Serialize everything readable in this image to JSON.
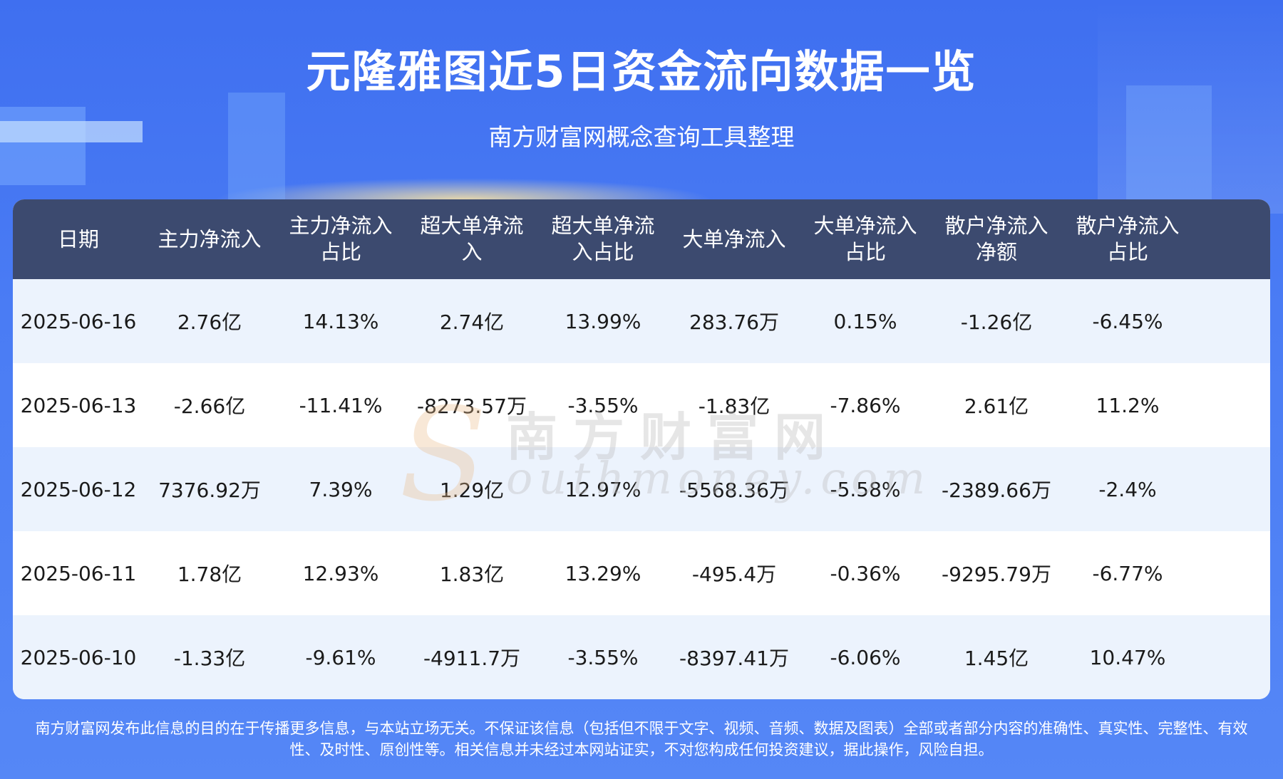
{
  "header": {
    "title": "元隆雅图近5日资金流向数据一览",
    "subtitle": "南方财富网概念查询工具整理"
  },
  "chart_data": {
    "type": "table",
    "columns": [
      [
        "日期"
      ],
      [
        "主力净流入"
      ],
      [
        "主力净流入",
        "占比"
      ],
      [
        "超大单净流",
        "入"
      ],
      [
        "超大单净流",
        "入占比"
      ],
      [
        "大单净流入"
      ],
      [
        "大单净流入",
        "占比"
      ],
      [
        "散户净流入",
        "净额"
      ],
      [
        "散户净流入",
        "占比"
      ]
    ],
    "rows": [
      [
        "2025-06-16",
        "2.76亿",
        "14.13%",
        "2.74亿",
        "13.99%",
        "283.76万",
        "0.15%",
        "-1.26亿",
        "-6.45%"
      ],
      [
        "2025-06-13",
        "-2.66亿",
        "-11.41%",
        "-8273.57万",
        "-3.55%",
        "-1.83亿",
        "-7.86%",
        "2.61亿",
        "11.2%"
      ],
      [
        "2025-06-12",
        "7376.92万",
        "7.39%",
        "1.29亿",
        "12.97%",
        "-5568.36万",
        "-5.58%",
        "-2389.66万",
        "-2.4%"
      ],
      [
        "2025-06-11",
        "1.78亿",
        "12.93%",
        "1.83亿",
        "13.29%",
        "-495.4万",
        "-0.36%",
        "-9295.79万",
        "-6.77%"
      ],
      [
        "2025-06-10",
        "-1.33亿",
        "-9.61%",
        "-4911.7万",
        "-3.55%",
        "-8397.41万",
        "-6.06%",
        "1.45亿",
        "10.47%"
      ]
    ]
  },
  "watermark": {
    "letter": "S",
    "cn": "南方财富网",
    "en": "outhmoney.com"
  },
  "footer": {
    "line1": "南方财富网发布此信息的目的在于传播更多信息，与本站立场无关。不保证该信息（包括但不限于文字、视频、音频、数据及图表）全部或者部分内容的准确性、真实性、完整性、有效",
    "line2": "性、及时性、原创性等。相关信息并未经过本网站证实，不对您构成任何投资建议，据此操作，风险自担。"
  }
}
